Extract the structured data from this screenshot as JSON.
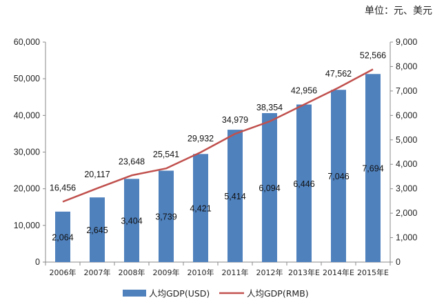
{
  "unit_label": "单位：元、美元",
  "legend": {
    "usd_label": "人均GDP(USD)",
    "rmb_label": "人均GDP(RMB)"
  },
  "colors": {
    "bar": "#4f81bd",
    "line": "#c0504d"
  },
  "chart_data": {
    "type": "bar",
    "categories": [
      "2006年",
      "2007年",
      "2008年",
      "2009年",
      "2010年",
      "2011年",
      "2012年",
      "2013年E",
      "2014年E",
      "2015年E"
    ],
    "series": [
      {
        "name": "人均GDP(USD)",
        "type": "bar",
        "axis": "right",
        "values": [
          2064,
          2645,
          3404,
          3739,
          4421,
          5414,
          6094,
          6446,
          7046,
          7694
        ],
        "labels": [
          "2,064",
          "2,645",
          "3,404",
          "3,739",
          "4,421",
          "5,414",
          "6,094",
          "6,446",
          "7,046",
          "7,694"
        ]
      },
      {
        "name": "人均GDP(RMB)",
        "type": "line",
        "axis": "left",
        "values": [
          16456,
          20117,
          23648,
          25541,
          29932,
          34979,
          38354,
          42956,
          47562,
          52566
        ],
        "labels": [
          "16,456",
          "20,117",
          "23,648",
          "25,541",
          "29,932",
          "34,979",
          "38,354",
          "42,956",
          "47,562",
          "52,566"
        ]
      }
    ],
    "y_left": {
      "ylim": [
        0,
        60000
      ],
      "ticks": [
        "0",
        "10,000",
        "20,000",
        "30,000",
        "40,000",
        "50,000",
        "60,000"
      ]
    },
    "y_right": {
      "ylim": [
        0,
        9000
      ],
      "ticks": [
        "0",
        "1,000",
        "2,000",
        "3,000",
        "4,000",
        "5,000",
        "6,000",
        "7,000",
        "8,000",
        "9,000"
      ]
    },
    "grid": false,
    "legend_position": "bottom"
  }
}
